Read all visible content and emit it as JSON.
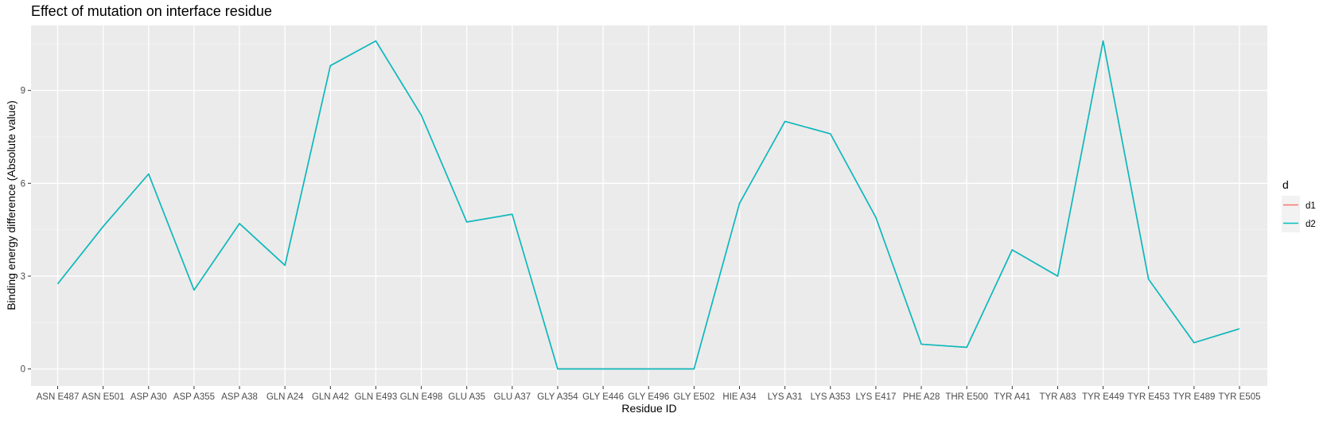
{
  "chart_data": {
    "type": "line",
    "title": "Effect of mutation on interface residue",
    "xlabel": "Residue ID",
    "ylabel": "Binding energy difference (Absolute value)",
    "categories": [
      "ASN E487",
      "ASN E501",
      "ASP A30",
      "ASP A355",
      "ASP A38",
      "GLN A24",
      "GLN A42",
      "GLN E493",
      "GLN E498",
      "GLU A35",
      "GLU A37",
      "GLY A354",
      "GLY E446",
      "GLY E496",
      "GLY E502",
      "HIE A34",
      "LYS A31",
      "LYS A353",
      "LYS E417",
      "PHE A28",
      "THR E500",
      "TYR A41",
      "TYR A83",
      "TYR E449",
      "TYR E453",
      "TYR E489",
      "TYR E505"
    ],
    "yticks": [
      0,
      3,
      6,
      9
    ],
    "ylim": [
      -0.55,
      11.1
    ],
    "grid": true,
    "legend": {
      "title": "d",
      "position": "right",
      "entries": [
        {
          "name": "d1",
          "color": "#F8766D"
        },
        {
          "name": "d2",
          "color": "#00BFC4"
        }
      ]
    },
    "series": [
      {
        "name": "d1",
        "color": "#F8766D",
        "values": [
          2.75,
          4.6,
          6.3,
          2.55,
          4.7,
          3.35,
          9.8,
          10.6,
          8.2,
          4.75,
          5.0,
          0,
          0,
          0,
          0,
          5.35,
          8.0,
          7.6,
          4.9,
          0.8,
          0.7,
          3.85,
          3.0,
          10.6,
          2.9,
          0.85,
          1.3
        ]
      },
      {
        "name": "d2",
        "color": "#00BFC4",
        "values": [
          2.75,
          4.6,
          6.3,
          2.55,
          4.7,
          3.35,
          9.8,
          10.6,
          8.2,
          4.75,
          5.0,
          0,
          0,
          0,
          0,
          5.35,
          8.0,
          7.6,
          4.9,
          0.8,
          0.7,
          3.85,
          3.0,
          10.6,
          2.9,
          0.85,
          1.3
        ]
      }
    ]
  }
}
